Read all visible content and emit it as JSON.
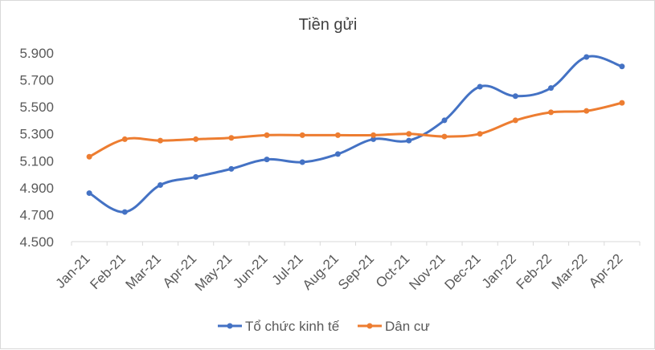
{
  "chart_data": {
    "type": "line",
    "title": "Tiền gửi",
    "xlabel": "",
    "ylabel": "",
    "categories": [
      "Jan-21",
      "Feb-21",
      "Mar-21",
      "Apr-21",
      "May-21",
      "Jun-21",
      "Jul-21",
      "Aug-21",
      "Sep-21",
      "Oct-21",
      "Nov-21",
      "Dec-21",
      "Jan-22",
      "Feb-22",
      "Mar-22",
      "Apr-22"
    ],
    "ylim": [
      4.5,
      5.9
    ],
    "yticks": [
      "4.500",
      "4.700",
      "4.900",
      "5.100",
      "5.300",
      "5.500",
      "5.700",
      "5.900"
    ],
    "ytick_values": [
      4.5,
      4.7,
      4.9,
      5.1,
      5.3,
      5.5,
      5.7,
      5.9
    ],
    "grid": false,
    "legend_position": "bottom",
    "series": [
      {
        "name": "Tổ chức kinh tế",
        "color": "#4472c4",
        "values": [
          4.86,
          4.72,
          4.92,
          4.98,
          5.04,
          5.11,
          5.09,
          5.15,
          5.26,
          5.25,
          5.4,
          5.65,
          5.58,
          5.64,
          5.87,
          5.8
        ]
      },
      {
        "name": "Dân cư",
        "color": "#ed7d31",
        "values": [
          5.13,
          5.26,
          5.25,
          5.26,
          5.27,
          5.29,
          5.29,
          5.29,
          5.29,
          5.3,
          5.28,
          5.3,
          5.4,
          5.46,
          5.47,
          5.53
        ]
      }
    ]
  }
}
